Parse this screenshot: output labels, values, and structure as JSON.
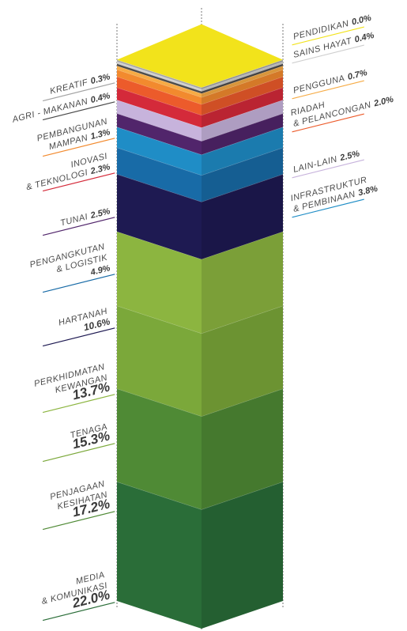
{
  "chart_data": {
    "type": "stacked-column",
    "series": [
      {
        "name": [
          "PENDIDIKAN"
        ],
        "color": "#f2e31b",
        "values": [
          0.0
        ],
        "value_labels": [
          "0.0%"
        ]
      },
      {
        "name": [
          "KREATIF"
        ],
        "color": "#a3a3a3",
        "values": [
          0.3
        ],
        "value_labels": [
          "0.3%"
        ]
      },
      {
        "name": [
          "SAINS HAYAT"
        ],
        "color": "#cfcfcf",
        "values": [
          0.4
        ],
        "value_labels": [
          "0.4%"
        ]
      },
      {
        "name": [
          "AGRI - MAKANAN"
        ],
        "color": "#4a4a4a",
        "values": [
          0.4
        ],
        "value_labels": [
          "0.4%"
        ]
      },
      {
        "name": [
          "PENGGUNA"
        ],
        "color": "#f6ab45",
        "values": [
          0.7
        ],
        "value_labels": [
          "0.7%"
        ]
      },
      {
        "name": [
          "PEMBANGUNAN",
          "MAMPAN"
        ],
        "color": "#f28a2e",
        "values": [
          1.3
        ],
        "value_labels": [
          "1.3%"
        ]
      },
      {
        "name": [
          "RIADAH",
          "& PELANCONGAN"
        ],
        "color": "#ec5b2b",
        "values": [
          2.0
        ],
        "value_labels": [
          "2.0%"
        ]
      },
      {
        "name": [
          "INOVASI",
          "& TEKNOLOGI"
        ],
        "color": "#d42a3a",
        "values": [
          2.3
        ],
        "value_labels": [
          "2.3%"
        ]
      },
      {
        "name": [
          "LAIN-LAIN"
        ],
        "color": "#c7b3dc",
        "values": [
          2.5
        ],
        "value_labels": [
          "2.5%"
        ]
      },
      {
        "name": [
          "TUNAI"
        ],
        "color": "#51256b",
        "values": [
          2.5
        ],
        "value_labels": [
          "2.5%"
        ]
      },
      {
        "name": [
          "INFRASTRUKTUR",
          "& PEMBINAAN"
        ],
        "color": "#1f8dc6",
        "values": [
          3.8
        ],
        "value_labels": [
          "3.8%"
        ]
      },
      {
        "name": [
          "PENGANGKUTAN",
          "& LOGISTIK"
        ],
        "color": "#186ba7",
        "values": [
          4.9
        ],
        "value_labels": [
          "4.9%"
        ]
      },
      {
        "name": [
          "HARTANAH"
        ],
        "color": "#1e1a52",
        "values": [
          10.6
        ],
        "value_labels": [
          "10.6%"
        ]
      },
      {
        "name": [
          "PERKHIDMATAN",
          "KEWANGAN"
        ],
        "color": "#8cb540",
        "values": [
          13.7
        ],
        "value_labels": [
          "13.7%"
        ]
      },
      {
        "name": [
          "TENAGA"
        ],
        "color": "#7ba83a",
        "values": [
          15.3
        ],
        "value_labels": [
          "15.3%"
        ]
      },
      {
        "name": [
          "PENJAGAAN",
          "KESIHATAN"
        ],
        "color": "#4f8a35",
        "values": [
          17.2
        ],
        "value_labels": [
          "17.2%"
        ]
      },
      {
        "name": [
          "MEDIA",
          "& KOMUNIKASI"
        ],
        "color": "#2a6d38",
        "values": [
          22.0
        ],
        "value_labels": [
          "22.0%"
        ]
      }
    ]
  }
}
